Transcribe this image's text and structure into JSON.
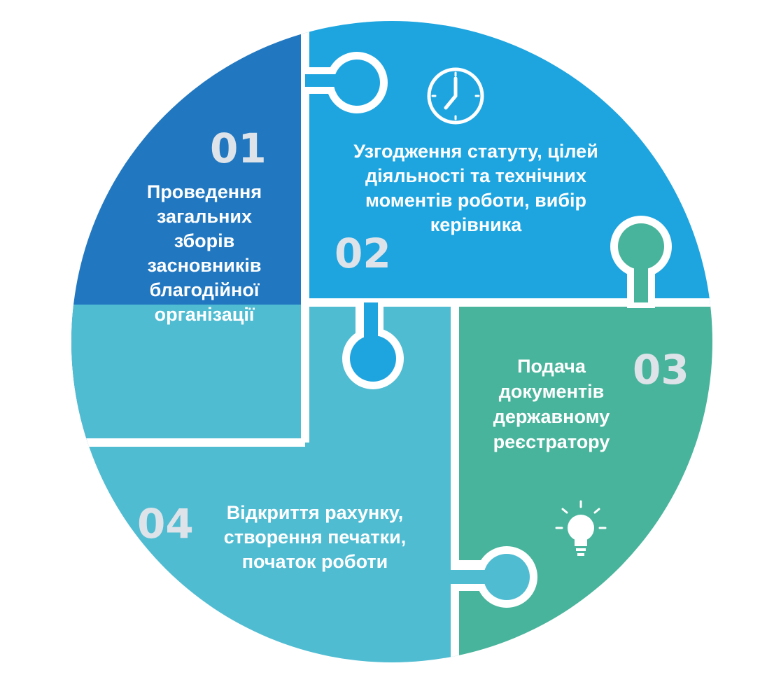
{
  "colors": {
    "step1": "#2178c1",
    "step2": "#1ea5e0",
    "step3": "#48b49b",
    "step4": "#4fbcd2",
    "number": "#dde3e8",
    "background": "#ffffff"
  },
  "steps": [
    {
      "number": "01",
      "lines": [
        "Проведення",
        "загальних",
        "зборів",
        "засновників",
        "благодійної",
        "організації"
      ]
    },
    {
      "number": "02",
      "lines": [
        "Узгодження статуту, цілей",
        "діяльності та технічних",
        "моментів роботи, вибір",
        "керівника"
      ],
      "icon": "clock-icon"
    },
    {
      "number": "03",
      "lines": [
        "Подача",
        "документів",
        "державному",
        "реєстратору"
      ],
      "icon": "lightbulb-icon"
    },
    {
      "number": "04",
      "lines": [
        "Відкриття рахунку,",
        "створення печатки,",
        "початок роботи"
      ]
    }
  ]
}
